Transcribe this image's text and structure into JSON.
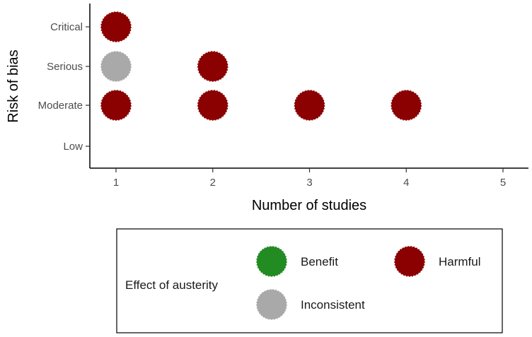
{
  "chart_data": {
    "type": "scatter",
    "xlabel": "Number of studies",
    "ylabel": "Risk of bias",
    "xlim": [
      0.75,
      5.25
    ],
    "x_ticks": [
      1,
      2,
      3,
      4,
      5
    ],
    "y_categories": [
      "Low",
      "Moderate",
      "Serious",
      "Critical"
    ],
    "grid": false,
    "points": [
      {
        "x": 1,
        "y": "Critical",
        "effect": "Harmful"
      },
      {
        "x": 1,
        "y": "Serious",
        "effect": "Inconsistent"
      },
      {
        "x": 2,
        "y": "Serious",
        "effect": "Harmful"
      },
      {
        "x": 1,
        "y": "Moderate",
        "effect": "Harmful"
      },
      {
        "x": 2,
        "y": "Moderate",
        "effect": "Harmful"
      },
      {
        "x": 3,
        "y": "Moderate",
        "effect": "Harmful"
      },
      {
        "x": 4,
        "y": "Moderate",
        "effect": "Harmful"
      }
    ],
    "legend": {
      "title": "Effect of austerity",
      "position": "bottom",
      "entries": [
        {
          "label": "Benefit",
          "color": "#228b22"
        },
        {
          "label": "Harmful",
          "color": "#8b0000"
        },
        {
          "label": "Inconsistent",
          "color": "#a9a9a9"
        }
      ]
    }
  }
}
